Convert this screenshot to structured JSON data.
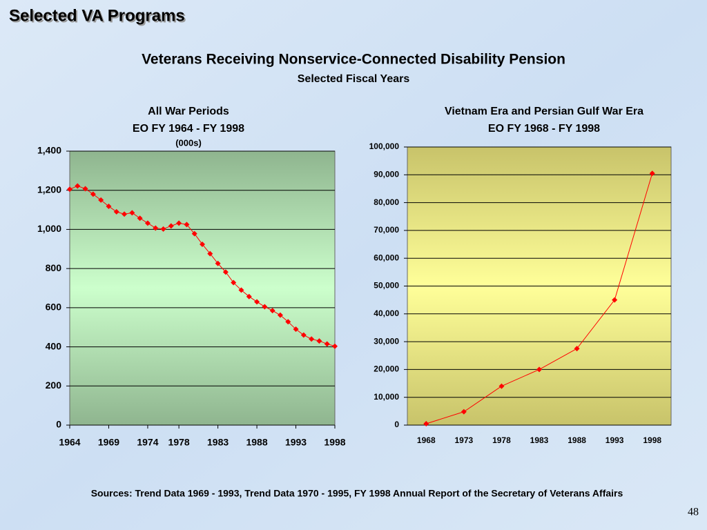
{
  "header": {
    "title": "Selected VA Programs"
  },
  "main_title": "Veterans Receiving Nonservice-Connected Disability Pension",
  "subtitle": "Selected Fiscal Years",
  "chart_data": [
    {
      "type": "line",
      "title": [
        "All War Periods",
        "EO FY 1964 - FY 1998"
      ],
      "unit_label": "(000s)",
      "x": [
        1964,
        1965,
        1966,
        1967,
        1968,
        1969,
        1970,
        1971,
        1972,
        1973,
        1974,
        1975,
        1976,
        1977,
        1978,
        1979,
        1980,
        1981,
        1982,
        1983,
        1984,
        1985,
        1986,
        1987,
        1988,
        1989,
        1990,
        1991,
        1992,
        1993,
        1994,
        1995,
        1996,
        1997,
        1998
      ],
      "values": [
        1205,
        1222,
        1208,
        1180,
        1150,
        1118,
        1090,
        1078,
        1085,
        1057,
        1032,
        1007,
        1002,
        1018,
        1032,
        1025,
        978,
        924,
        876,
        826,
        782,
        728,
        690,
        657,
        630,
        605,
        585,
        562,
        528,
        490,
        460,
        440,
        430,
        415,
        403
      ],
      "color": "#ff0000",
      "xlim": [
        1964,
        1998
      ],
      "xticks": [
        1964,
        1969,
        1974,
        1978,
        1983,
        1988,
        1993,
        1998
      ],
      "ylim": [
        0,
        1400
      ],
      "yticks": [
        0,
        200,
        400,
        600,
        800,
        {
          "value": 1000,
          "label": "1,000"
        },
        {
          "value": 1200,
          "label": "1,200"
        },
        {
          "value": 1400,
          "label": "1,400"
        }
      ],
      "grid": true
    },
    {
      "type": "line",
      "title": [
        "Vietnam Era and Persian Gulf War Era",
        "EO FY 1968 - FY 1998"
      ],
      "categories": [
        "1968",
        "1973",
        "1978",
        "1983",
        "1988",
        "1993",
        "1998"
      ],
      "values": [
        500,
        4800,
        14000,
        20000,
        27500,
        45000,
        90500
      ],
      "color": "#ff0000",
      "ylim": [
        0,
        100000
      ],
      "yticks": [
        0,
        {
          "value": 10000,
          "label": "10,000"
        },
        {
          "value": 20000,
          "label": "20,000"
        },
        {
          "value": 30000,
          "label": "30,000"
        },
        {
          "value": 40000,
          "label": "40,000"
        },
        {
          "value": 50000,
          "label": "50,000"
        },
        {
          "value": 60000,
          "label": "60,000"
        },
        {
          "value": 70000,
          "label": "70,000"
        },
        {
          "value": 80000,
          "label": "80,000"
        },
        {
          "value": 90000,
          "label": "90,000"
        },
        {
          "value": 100000,
          "label": "100,000"
        }
      ],
      "grid": true
    }
  ],
  "footer": {
    "source": "Sources:  Trend Data 1969 - 1993, Trend Data 1970 - 1995,  FY 1998 Annual Report of the Secretary of Veterans Affairs",
    "page_number": "48"
  }
}
